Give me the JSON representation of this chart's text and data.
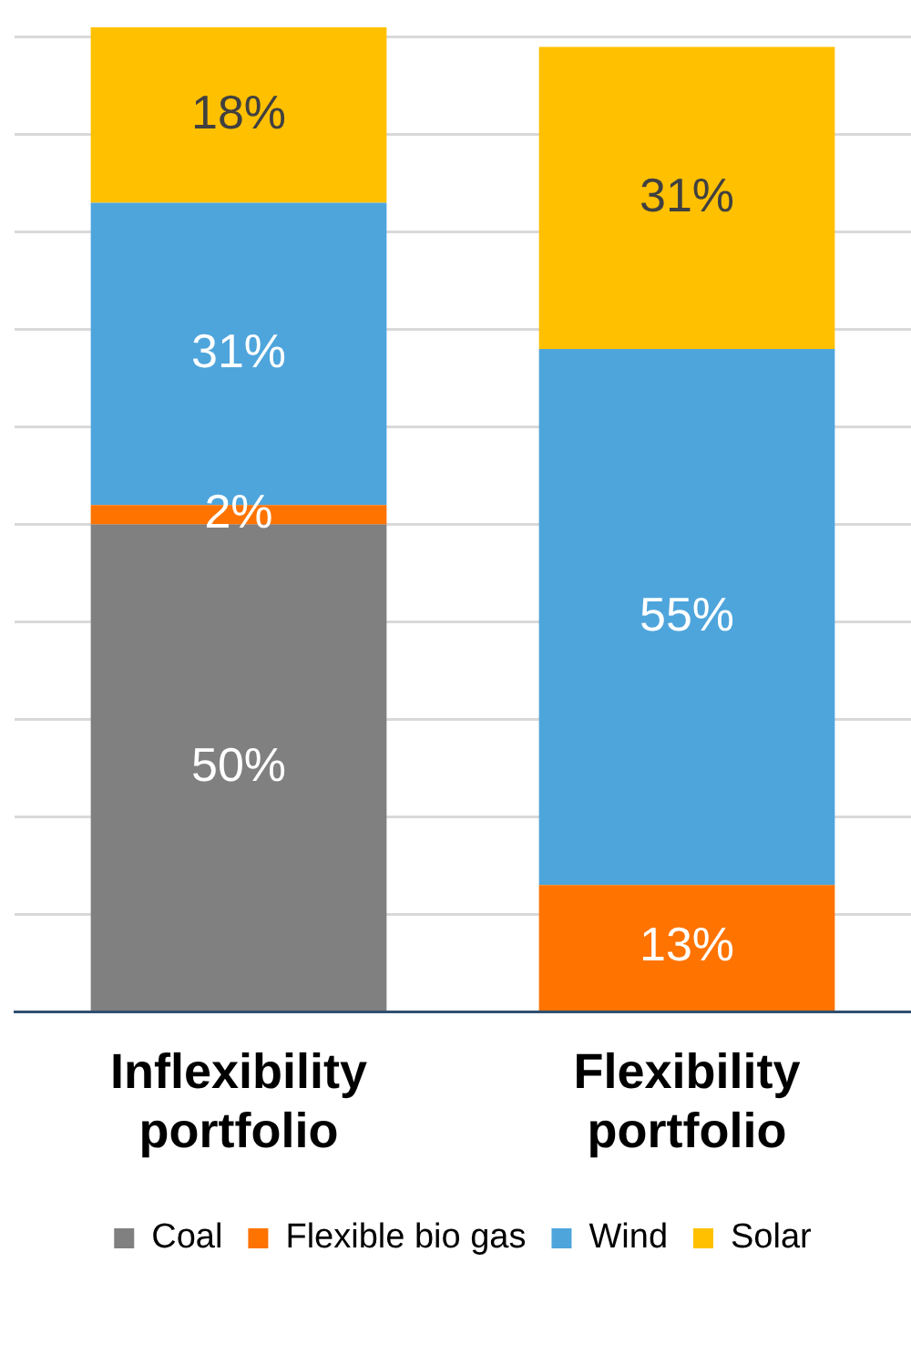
{
  "chart_data": {
    "type": "bar",
    "stacked": true,
    "categories": [
      "Inflexibility portfolio",
      "Flexibility portfolio"
    ],
    "series": [
      {
        "name": "Coal",
        "color": "#808080",
        "values": [
          50,
          null
        ],
        "value_labels": [
          "50%",
          null
        ]
      },
      {
        "name": "Flexible bio gas",
        "color": "#ff7300",
        "values": [
          2,
          13
        ],
        "value_labels": [
          "2%",
          "13%"
        ]
      },
      {
        "name": "Wind",
        "color": "#4ea5dc",
        "values": [
          31,
          55
        ],
        "value_labels": [
          "31%",
          "55%"
        ]
      },
      {
        "name": "Solar",
        "color": "#ffc000",
        "values": [
          18,
          31
        ],
        "value_labels": [
          "18%",
          "31%"
        ]
      }
    ],
    "ylim": [
      0,
      101
    ],
    "yticks": [
      0,
      10,
      20,
      30,
      40,
      50,
      60,
      70,
      80,
      90,
      100
    ],
    "tick_labels": "x",
    "grid": "y",
    "legend": "bottom"
  }
}
